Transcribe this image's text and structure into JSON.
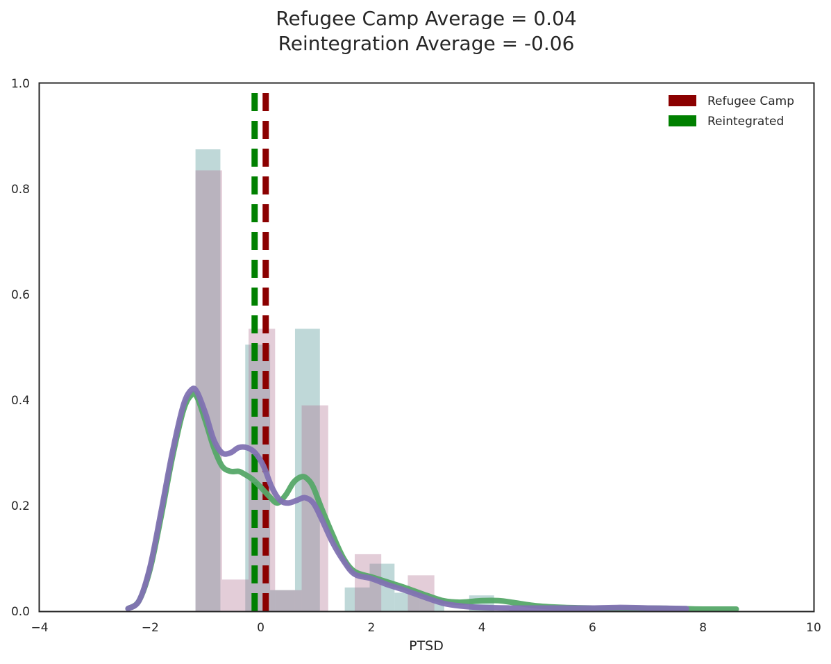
{
  "chart_data": {
    "type": "histogram-kde",
    "title_lines": [
      "Refugee Camp Average = 0.04",
      "Reintegration Average = -0.06"
    ],
    "xlabel": "PTSD",
    "ylabel": "",
    "xlim": [
      -4,
      10
    ],
    "ylim": [
      0,
      1.0
    ],
    "xticks": [
      -4,
      -2,
      0,
      2,
      4,
      6,
      8,
      10
    ],
    "yticks": [
      0.0,
      0.2,
      0.4,
      0.6,
      0.8,
      1.0
    ],
    "grid": false,
    "legend_position": "top-right",
    "legend": [
      {
        "label": "Refugee Camp",
        "color": "#8b0000"
      },
      {
        "label": "Reintegrated",
        "color": "#008000"
      }
    ],
    "mean_lines": [
      {
        "name": "Refugee Camp Average",
        "x": 0.04,
        "color": "#8b0000"
      },
      {
        "name": "Reintegration Average",
        "x": -0.06,
        "color": "#008000"
      }
    ],
    "histograms": [
      {
        "name": "Reintegrated",
        "color": "#5f9e9e",
        "opacity": 0.4,
        "bins": [
          {
            "x0": -1.18,
            "x1": -0.73,
            "y": 0.875
          },
          {
            "x0": -0.28,
            "x1": 0.17,
            "y": 0.505
          },
          {
            "x0": 0.17,
            "x1": 0.62,
            "y": 0.04
          },
          {
            "x0": 0.62,
            "x1": 1.07,
            "y": 0.535
          },
          {
            "x0": 1.52,
            "x1": 1.97,
            "y": 0.045
          },
          {
            "x0": 1.97,
            "x1": 2.42,
            "y": 0.09
          },
          {
            "x0": 2.42,
            "x1": 2.87,
            "y": 0.035
          },
          {
            "x0": 2.87,
            "x1": 3.32,
            "y": 0.025
          },
          {
            "x0": 3.77,
            "x1": 4.22,
            "y": 0.03
          }
        ]
      },
      {
        "name": "Refugee Camp",
        "color": "#b07090",
        "opacity": 0.35,
        "bins": [
          {
            "x0": -1.18,
            "x1": -0.7,
            "y": 0.835
          },
          {
            "x0": -0.7,
            "x1": -0.22,
            "y": 0.06
          },
          {
            "x0": -0.22,
            "x1": 0.26,
            "y": 0.535
          },
          {
            "x0": 0.26,
            "x1": 0.74,
            "y": 0.04
          },
          {
            "x0": 0.74,
            "x1": 1.22,
            "y": 0.39
          },
          {
            "x0": 1.7,
            "x1": 2.18,
            "y": 0.108
          },
          {
            "x0": 2.66,
            "x1": 3.14,
            "y": 0.068
          }
        ]
      }
    ],
    "kde": [
      {
        "name": "Reintegrated",
        "color": "#55a868",
        "x": [
          -2.4,
          -2.2,
          -2.0,
          -1.8,
          -1.6,
          -1.4,
          -1.25,
          -1.15,
          -1.0,
          -0.85,
          -0.7,
          -0.55,
          -0.4,
          -0.3,
          -0.15,
          0.0,
          0.15,
          0.3,
          0.45,
          0.6,
          0.75,
          0.85,
          0.95,
          1.1,
          1.3,
          1.5,
          1.7,
          2.0,
          2.3,
          2.6,
          3.0,
          3.3,
          3.6,
          4.0,
          4.3,
          4.6,
          5.0,
          5.5,
          6.0,
          6.5,
          7.0,
          7.5,
          8.0,
          8.6
        ],
        "y": [
          0.005,
          0.02,
          0.08,
          0.18,
          0.29,
          0.38,
          0.41,
          0.405,
          0.36,
          0.31,
          0.275,
          0.265,
          0.265,
          0.26,
          0.25,
          0.235,
          0.218,
          0.205,
          0.22,
          0.245,
          0.255,
          0.25,
          0.235,
          0.195,
          0.145,
          0.1,
          0.075,
          0.065,
          0.055,
          0.045,
          0.03,
          0.02,
          0.017,
          0.02,
          0.02,
          0.016,
          0.01,
          0.007,
          0.006,
          0.005,
          0.006,
          0.005,
          0.004,
          0.004
        ]
      },
      {
        "name": "Refugee Camp",
        "color": "#8172b2",
        "x": [
          -2.4,
          -2.2,
          -2.0,
          -1.8,
          -1.6,
          -1.4,
          -1.25,
          -1.15,
          -1.0,
          -0.85,
          -0.7,
          -0.55,
          -0.4,
          -0.25,
          -0.1,
          0.05,
          0.2,
          0.35,
          0.5,
          0.65,
          0.8,
          0.95,
          1.1,
          1.3,
          1.5,
          1.7,
          2.0,
          2.3,
          2.6,
          3.0,
          3.3,
          3.6,
          4.0,
          4.5,
          5.0,
          5.5,
          6.0,
          6.5,
          7.0,
          7.7
        ],
        "y": [
          0.005,
          0.02,
          0.085,
          0.19,
          0.3,
          0.39,
          0.42,
          0.415,
          0.375,
          0.325,
          0.3,
          0.3,
          0.31,
          0.31,
          0.3,
          0.275,
          0.235,
          0.21,
          0.205,
          0.21,
          0.215,
          0.205,
          0.175,
          0.13,
          0.095,
          0.07,
          0.062,
          0.05,
          0.04,
          0.025,
          0.015,
          0.01,
          0.007,
          0.006,
          0.006,
          0.006,
          0.006,
          0.007,
          0.006,
          0.005
        ]
      }
    ]
  }
}
